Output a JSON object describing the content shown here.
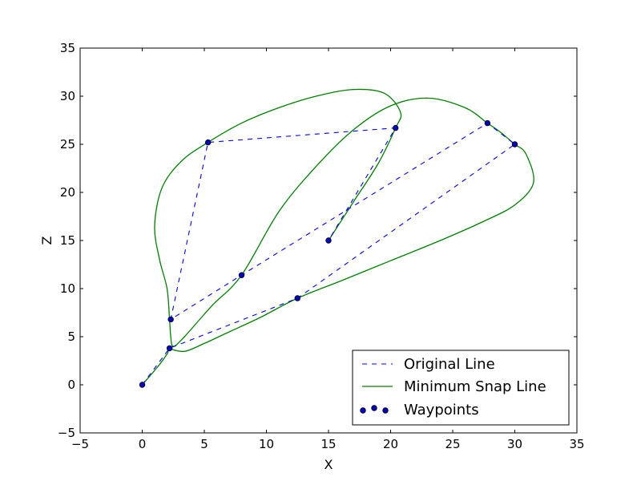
{
  "chart_data": {
    "type": "line",
    "title": "",
    "xlabel": "X",
    "ylabel": "Z",
    "xlim": [
      -5,
      35
    ],
    "ylim": [
      -5,
      35
    ],
    "xticks": [
      -5,
      0,
      5,
      10,
      15,
      20,
      25,
      30,
      35
    ],
    "yticks": [
      -5,
      0,
      5,
      10,
      15,
      20,
      25,
      30,
      35
    ],
    "grid": false,
    "legend_position": "bottom-right",
    "colors": {
      "original": "#0000ff",
      "snap": "#008000",
      "waypoint_fill": "#0000cc",
      "waypoint_edge": "#000000"
    },
    "series": [
      {
        "name": "Original Line",
        "style": "dashed",
        "points": [
          [
            0,
            0
          ],
          [
            2.2,
            3.8
          ],
          [
            12.5,
            9.0
          ],
          [
            30.0,
            25.0
          ],
          [
            27.8,
            27.2
          ],
          [
            8.0,
            11.4
          ],
          [
            2.3,
            6.8
          ],
          [
            5.3,
            25.2
          ],
          [
            20.4,
            26.7
          ],
          [
            15.0,
            15.0
          ]
        ]
      },
      {
        "name": "Minimum Snap Line",
        "style": "solid",
        "points": [
          [
            0,
            0
          ],
          [
            1.2,
            1.8
          ],
          [
            2.0,
            3.2
          ],
          [
            2.2,
            3.8
          ],
          [
            2.6,
            3.6
          ],
          [
            3.5,
            3.5
          ],
          [
            5.0,
            4.3
          ],
          [
            7.0,
            5.5
          ],
          [
            9.5,
            7.0
          ],
          [
            12.5,
            9.0
          ],
          [
            16.0,
            10.8
          ],
          [
            20.0,
            12.9
          ],
          [
            24.0,
            15.0
          ],
          [
            27.5,
            17.0
          ],
          [
            30.0,
            18.7
          ],
          [
            31.5,
            21.0
          ],
          [
            30.9,
            24.0
          ],
          [
            30.0,
            25.0
          ],
          [
            28.8,
            26.3
          ],
          [
            27.8,
            27.2
          ],
          [
            26.0,
            28.8
          ],
          [
            23.0,
            29.8
          ],
          [
            20.0,
            29.0
          ],
          [
            17.0,
            26.5
          ],
          [
            14.0,
            22.7
          ],
          [
            11.0,
            18.0
          ],
          [
            8.0,
            11.4
          ],
          [
            5.6,
            8.2
          ],
          [
            3.4,
            5.0
          ],
          [
            2.5,
            4.0
          ],
          [
            2.3,
            5.0
          ],
          [
            2.2,
            6.8
          ],
          [
            2.0,
            10.0
          ],
          [
            1.4,
            13.0
          ],
          [
            1.0,
            16.5
          ],
          [
            1.6,
            20.5
          ],
          [
            3.2,
            23.3
          ],
          [
            5.3,
            25.2
          ],
          [
            8.0,
            27.2
          ],
          [
            11.0,
            28.8
          ],
          [
            14.0,
            30.0
          ],
          [
            17.0,
            30.7
          ],
          [
            19.5,
            30.3
          ],
          [
            20.8,
            28.3
          ],
          [
            20.4,
            26.7
          ],
          [
            19.0,
            23.0
          ],
          [
            17.0,
            19.0
          ],
          [
            15.0,
            15.0
          ]
        ]
      },
      {
        "name": "Waypoints",
        "style": "markers",
        "points": [
          [
            0,
            0
          ],
          [
            2.2,
            3.8
          ],
          [
            2.3,
            6.8
          ],
          [
            8.0,
            11.4
          ],
          [
            12.5,
            9.0
          ],
          [
            15.0,
            15.0
          ],
          [
            5.3,
            25.2
          ],
          [
            20.4,
            26.7
          ],
          [
            27.8,
            27.2
          ],
          [
            30.0,
            25.0
          ]
        ]
      }
    ]
  }
}
